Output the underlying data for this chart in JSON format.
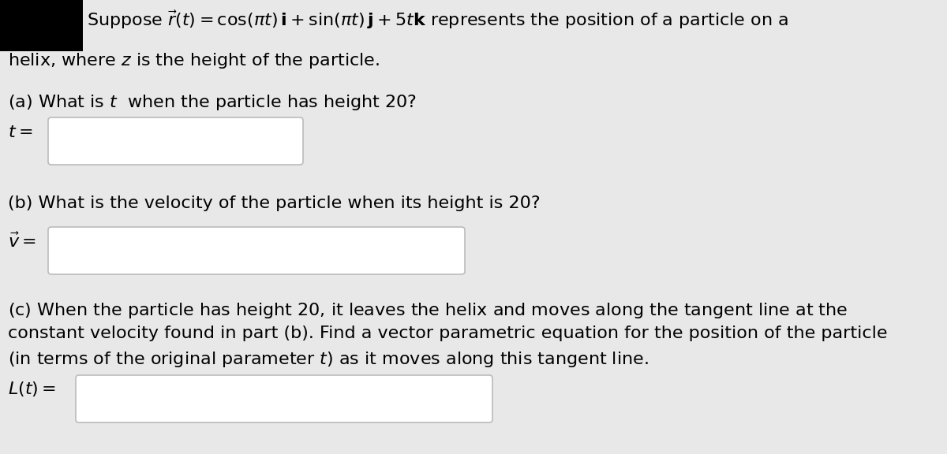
{
  "bg_color": "#e8e8e8",
  "black_box_color": "#000000",
  "input_box_color": "#ffffff",
  "input_box_border": "#bbbbbb",
  "text_color": "#000000",
  "line1_formula": "Suppose $\\vec{r}(t) = \\cos(\\pi t)\\,\\mathbf{i} + \\sin(\\pi t)\\,\\mathbf{j} + 5t\\mathbf{k}$ represents the position of a particle on a",
  "line2_text": "helix, where $z$ is the height of the particle.",
  "part_a_question": "(a) What is $t$  when the particle has height 20?",
  "part_a_label": "$t =$",
  "part_b_question": "(b) What is the velocity of the particle when its height is 20?",
  "part_b_label": "$\\vec{v} =$",
  "part_c_line1": "(c) When the particle has height $20$, it leaves the helix and moves along the tangent line at the",
  "part_c_line2": "constant velocity found in part (b). Find a vector parametric equation for the position of the particle",
  "part_c_line3": "(in terms of the original parameter $t$) as it moves along this tangent line.",
  "part_c_label": "$L(t) =$",
  "font_size_main": 16
}
